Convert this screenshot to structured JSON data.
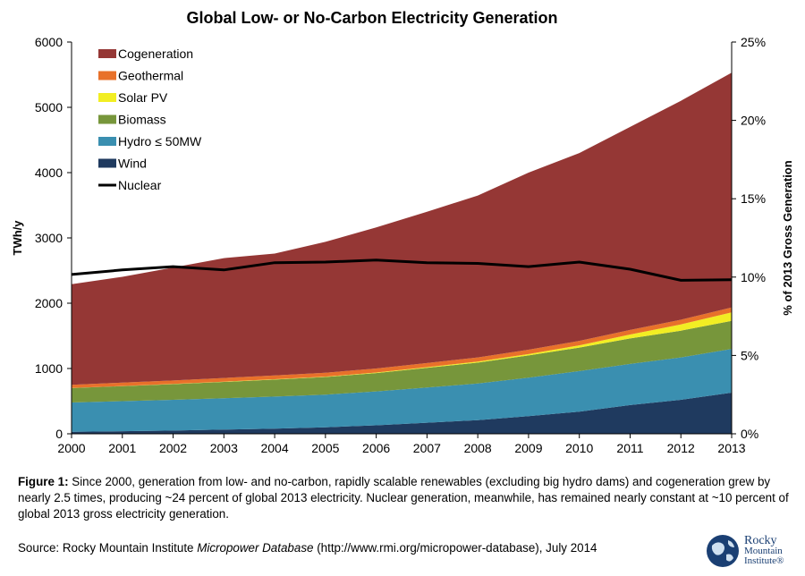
{
  "chart_data": {
    "type": "area",
    "title": "Global Low- or No-Carbon Electricity Generation",
    "ylabel": "TWh/y",
    "y2label": "% of 2013 Gross Generation",
    "x": [
      2000,
      2001,
      2002,
      2003,
      2004,
      2005,
      2006,
      2007,
      2008,
      2009,
      2010,
      2011,
      2012,
      2013
    ],
    "ylim": [
      0,
      6000
    ],
    "yticks": [
      0,
      1000,
      2000,
      3000,
      4000,
      5000,
      6000
    ],
    "y2lim": [
      0,
      25
    ],
    "y2ticks": [
      "0%",
      "5%",
      "10%",
      "15%",
      "20%",
      "25%"
    ],
    "grid": false,
    "legend_position": "top-left",
    "stacked_series": [
      {
        "name": "Wind",
        "color": "#1f3a5f",
        "values": [
          30,
          40,
          50,
          65,
          80,
          100,
          130,
          170,
          210,
          270,
          340,
          440,
          520,
          630
        ]
      },
      {
        "name": "Hydro ≤ 50MW",
        "color": "#3a8fb0",
        "values": [
          450,
          460,
          470,
          480,
          490,
          500,
          520,
          540,
          560,
          590,
          620,
          630,
          650,
          670
        ]
      },
      {
        "name": "Biomass",
        "color": "#77963b",
        "values": [
          220,
          230,
          240,
          250,
          260,
          270,
          280,
          300,
          320,
          340,
          360,
          390,
          410,
          430
        ]
      },
      {
        "name": "Solar PV",
        "color": "#f2ee23",
        "values": [
          1,
          2,
          3,
          4,
          5,
          6,
          8,
          10,
          15,
          20,
          35,
          60,
          95,
          130
        ]
      },
      {
        "name": "Geothermal",
        "color": "#e8712a",
        "values": [
          50,
          52,
          54,
          56,
          58,
          60,
          62,
          63,
          65,
          67,
          68,
          70,
          72,
          75
        ]
      },
      {
        "name": "Cogeneration",
        "color": "#953735",
        "values": [
          1540,
          1620,
          1730,
          1835,
          1867,
          2004,
          2160,
          2317,
          2480,
          2713,
          2877,
          3110,
          3353,
          3595
        ]
      }
    ],
    "line_series": {
      "name": "Nuclear",
      "color": "#000000",
      "values": [
        2440,
        2510,
        2560,
        2510,
        2620,
        2630,
        2660,
        2620,
        2610,
        2560,
        2630,
        2520,
        2350,
        2360
      ]
    },
    "legend": [
      {
        "label": "Cogeneration",
        "color": "#953735"
      },
      {
        "label": "Geothermal",
        "color": "#e8712a"
      },
      {
        "label": "Solar PV",
        "color": "#f2ee23"
      },
      {
        "label": "Biomass",
        "color": "#77963b"
      },
      {
        "label": "Hydro ≤ 50MW",
        "color": "#3a8fb0"
      },
      {
        "label": "Wind",
        "color": "#1f3a5f"
      },
      {
        "label": "Nuclear",
        "color": "#000000",
        "line": true
      }
    ]
  },
  "caption": {
    "label": "Figure 1:",
    "text": " Since 2000, generation from low- and no-carbon, rapidly scalable renewables (excluding big hydro dams) and cogeneration grew by nearly 2.5 times, producing ~24 percent of global 2013 electricity. Nuclear generation, meanwhile, has remained nearly constant at ~10 percent of global 2013 gross electricity generation."
  },
  "source": {
    "prefix": "Source: Rocky Mountain Institute ",
    "italic": "Micropower Database",
    "suffix": " (http://www.rmi.org/micropower-database), July 2014"
  },
  "logo": {
    "line1": "Rocky",
    "line2": "Mountain",
    "line3": "Institute®"
  }
}
